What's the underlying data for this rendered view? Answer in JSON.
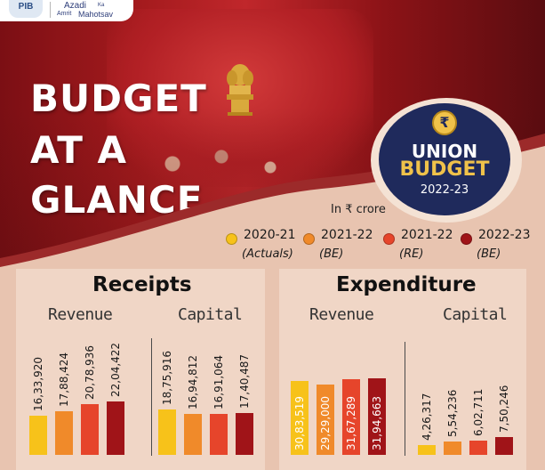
{
  "logo": {
    "mark": "PIB",
    "azadi": "Azadi",
    "ka": "Ka",
    "amrit": "Amrit",
    "mahotsav": "Mahotsav"
  },
  "title": {
    "line1": "BUDGET",
    "line2": "AT A",
    "line3": "GLANCE"
  },
  "badge": {
    "symbol": "₹",
    "union": "UNION",
    "budget": "BUDGET",
    "year": "2022-23"
  },
  "unit": "In ₹ crore",
  "legend": [
    {
      "year": "2020-21",
      "tag": "(Actuals)",
      "color": "#f7c21a"
    },
    {
      "year": "2021-22",
      "tag": "(BE)",
      "color": "#f08a2a"
    },
    {
      "year": "2021-22",
      "tag": "(RE)",
      "color": "#e6452b"
    },
    {
      "year": "2022-23",
      "tag": "(BE)",
      "color": "#a01418"
    }
  ],
  "colors": {
    "background": "#e8c4b0",
    "panel": "#f0d6c6",
    "badge": "#1f2a5c",
    "gold": "#f0c24a"
  },
  "chart_data": [
    {
      "type": "bar",
      "title": "Receipts",
      "categories": [
        "Revenue",
        "Capital"
      ],
      "series": [
        {
          "name": "2020-21 (Actuals)",
          "values": [
            1633920,
            1875916
          ],
          "labels": [
            "16,33,920",
            "18,75,916"
          ]
        },
        {
          "name": "2021-22 (BE)",
          "values": [
            1788424,
            1694812
          ],
          "labels": [
            "17,88,424",
            "16,94,812"
          ]
        },
        {
          "name": "2021-22 (RE)",
          "values": [
            2078936,
            1691064
          ],
          "labels": [
            "20,78,936",
            "16,91,064"
          ]
        },
        {
          "name": "2022-23 (BE)",
          "values": [
            2204422,
            1740487
          ],
          "labels": [
            "22,04,422",
            "17,40,487"
          ]
        }
      ]
    },
    {
      "type": "bar",
      "title": "Expenditure",
      "categories": [
        "Revenue",
        "Capital"
      ],
      "series": [
        {
          "name": "2020-21 (Actuals)",
          "values": [
            3083519,
            426317
          ],
          "labels": [
            "30,83,519",
            "4,26,317"
          ]
        },
        {
          "name": "2021-22 (BE)",
          "values": [
            2929000,
            554236
          ],
          "labels": [
            "29,29,000",
            "5,54,236"
          ]
        },
        {
          "name": "2021-22 (RE)",
          "values": [
            3167289,
            602711
          ],
          "labels": [
            "31,67,289",
            "6,02,711"
          ]
        },
        {
          "name": "2022-23 (BE)",
          "values": [
            3194663,
            750246
          ],
          "labels": [
            "31,94,663",
            "7,50,246"
          ]
        }
      ]
    }
  ]
}
